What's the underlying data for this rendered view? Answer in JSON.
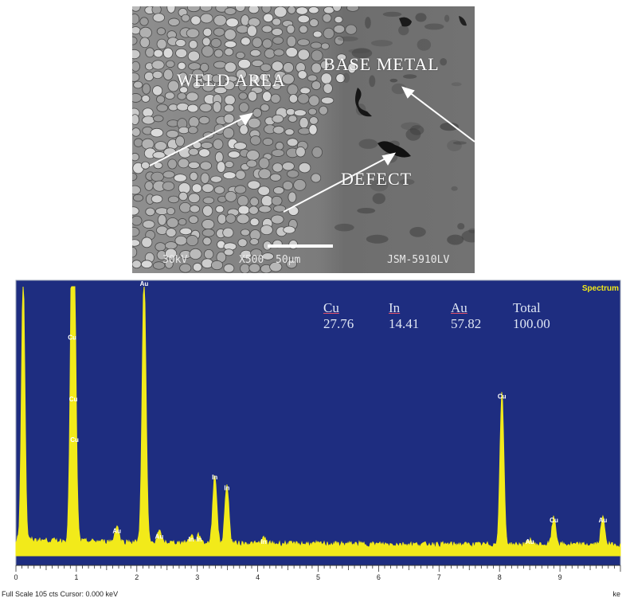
{
  "sem": {
    "labels": {
      "weld_area": "WELD AREA",
      "base_metal": "BASE METAL",
      "defect": "DEFECT"
    },
    "footer": {
      "kv": "30kV",
      "mag": "X500",
      "scale": "50µm",
      "instrument": "JSM-5910LV"
    }
  },
  "chart_data": {
    "type": "line",
    "x_ticks": [
      "0",
      "1",
      "2",
      "3",
      "4",
      "5",
      "6",
      "7",
      "8",
      "9"
    ],
    "xlim": [
      0,
      10
    ],
    "corner_label": "Spectrum",
    "status": "Full Scale 105 cts  Cursor: 0.000 keV",
    "x_unit": "ke",
    "peaks": [
      {
        "element": "Cu",
        "x": 0.93,
        "height": 0.78
      },
      {
        "element": "Cu",
        "x": 0.95,
        "height": 0.55
      },
      {
        "element": "Cu",
        "x": 0.97,
        "height": 0.4
      },
      {
        "element": "Au",
        "x": 2.12,
        "height": 0.98
      },
      {
        "element": "Au",
        "x": 1.67,
        "height": 0.06
      },
      {
        "element": "Au",
        "x": 2.37,
        "height": 0.04
      },
      {
        "element": "In",
        "x": 3.29,
        "height": 0.26
      },
      {
        "element": "In",
        "x": 3.49,
        "height": 0.22
      },
      {
        "element": "In",
        "x": 2.9,
        "height": 0.03
      },
      {
        "element": "In",
        "x": 3.03,
        "height": 0.03
      },
      {
        "element": "In",
        "x": 4.1,
        "height": 0.02
      },
      {
        "element": "Cu",
        "x": 8.04,
        "height": 0.56
      },
      {
        "element": "Au",
        "x": 8.5,
        "height": 0.02
      },
      {
        "element": "Cu",
        "x": 8.9,
        "height": 0.1
      },
      {
        "element": "Au",
        "x": 9.71,
        "height": 0.1
      }
    ],
    "weight_table": {
      "headers": [
        "Cu",
        "In",
        "Au",
        "Total"
      ],
      "values": [
        "27.76",
        "14.41",
        "57.82",
        "100.00"
      ]
    },
    "colors": {
      "background": "#1e2d80",
      "spectrum": "#f2ea1a",
      "label": "#ffffff"
    }
  }
}
